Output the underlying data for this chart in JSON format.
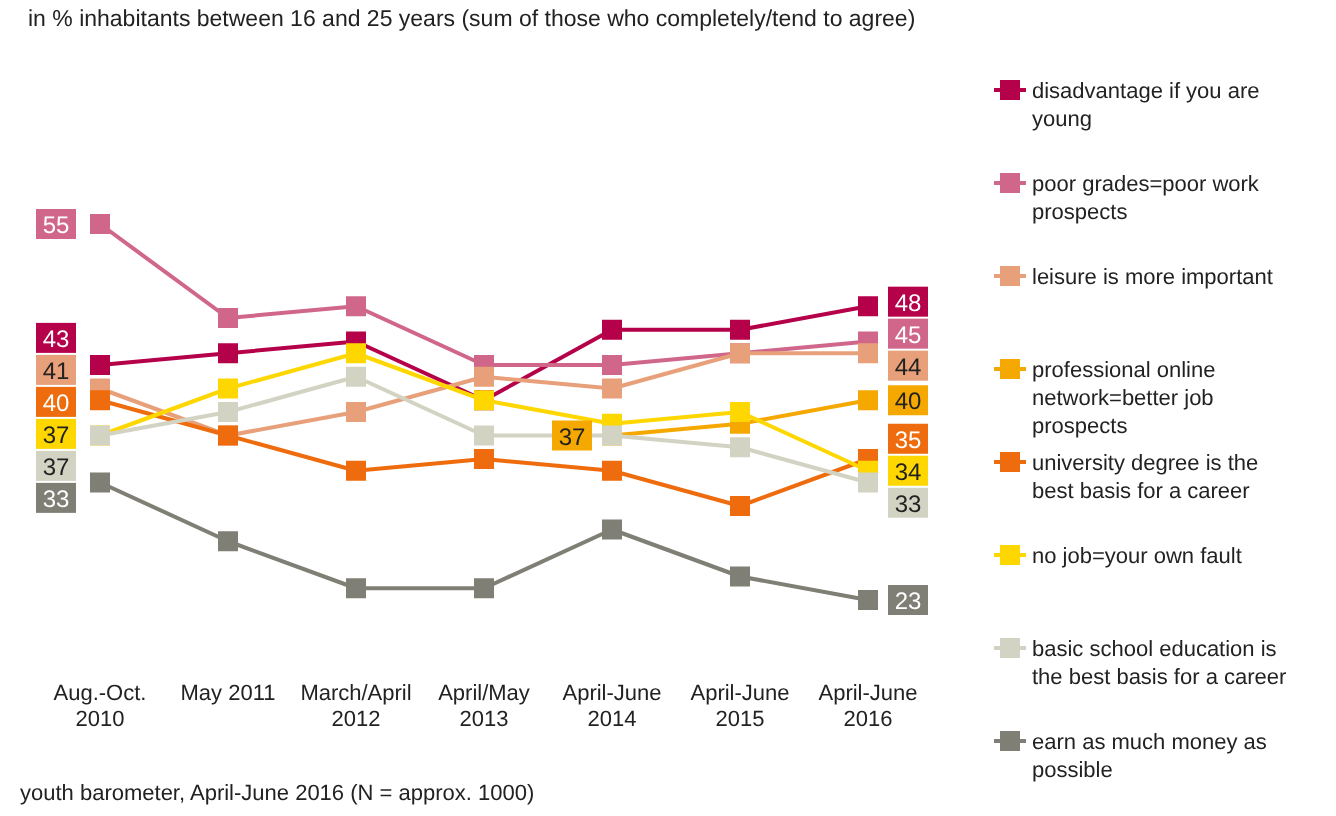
{
  "chart_data": {
    "type": "line",
    "title": "in % inhabitants between 16 and 25 years (sum of those who completely/tend to agree)",
    "categories": [
      "Aug.-Oct. 2010",
      "May 2011",
      "March/April 2012",
      "April/May 2013",
      "April-June 2014",
      "April-June 2015",
      "April-June 2016"
    ],
    "series": [
      {
        "name": "disadvantage if you are young",
        "color": "#b5004a",
        "values": [
          43,
          44,
          45,
          40,
          46,
          46,
          48
        ],
        "value_labels": [
          "43",
          null,
          null,
          null,
          null,
          null,
          "48"
        ]
      },
      {
        "name": "poor grades=poor work prospects",
        "color": "#d0678a",
        "values": [
          55,
          47,
          48,
          43,
          43,
          44,
          45
        ],
        "value_labels": [
          "55",
          null,
          null,
          null,
          null,
          null,
          "45"
        ]
      },
      {
        "name": "leisure is more important",
        "color": "#e8a07a",
        "values": [
          41,
          37,
          39,
          42,
          41,
          44,
          44
        ],
        "value_labels": [
          "41",
          null,
          null,
          null,
          null,
          null,
          "44"
        ]
      },
      {
        "name": "professional online network=better job prospects",
        "color": "#f5a800",
        "values": [
          null,
          null,
          null,
          null,
          37,
          38,
          40
        ],
        "value_labels": [
          null,
          null,
          null,
          null,
          "37",
          null,
          "40"
        ]
      },
      {
        "name": "university degree is the best basis for a career",
        "color": "#ee6c0d",
        "values": [
          40,
          37,
          34,
          35,
          34,
          31,
          35
        ],
        "value_labels": [
          "40",
          null,
          null,
          null,
          null,
          null,
          "35"
        ]
      },
      {
        "name": "no job=your own fault",
        "color": "#ffd700",
        "values": [
          37,
          41,
          44,
          40,
          38,
          39,
          34
        ],
        "value_labels": [
          "37",
          null,
          null,
          null,
          null,
          null,
          "34"
        ]
      },
      {
        "name": "basic school education is the best basis for a career",
        "color": "#d3d3c3",
        "values": [
          37,
          39,
          42,
          37,
          37,
          36,
          33
        ],
        "value_labels": [
          "37",
          null,
          null,
          null,
          null,
          null,
          "33"
        ]
      },
      {
        "name": "earn as much money as possible",
        "color": "#7f7f76",
        "values": [
          33,
          28,
          24,
          24,
          29,
          25,
          23
        ],
        "value_labels": [
          "33",
          null,
          null,
          null,
          null,
          null,
          "23"
        ]
      }
    ],
    "marker": "square",
    "legend": "right",
    "annotations": [
      "youth barometer, April-June 2016 (N = approx. 1000)"
    ]
  }
}
